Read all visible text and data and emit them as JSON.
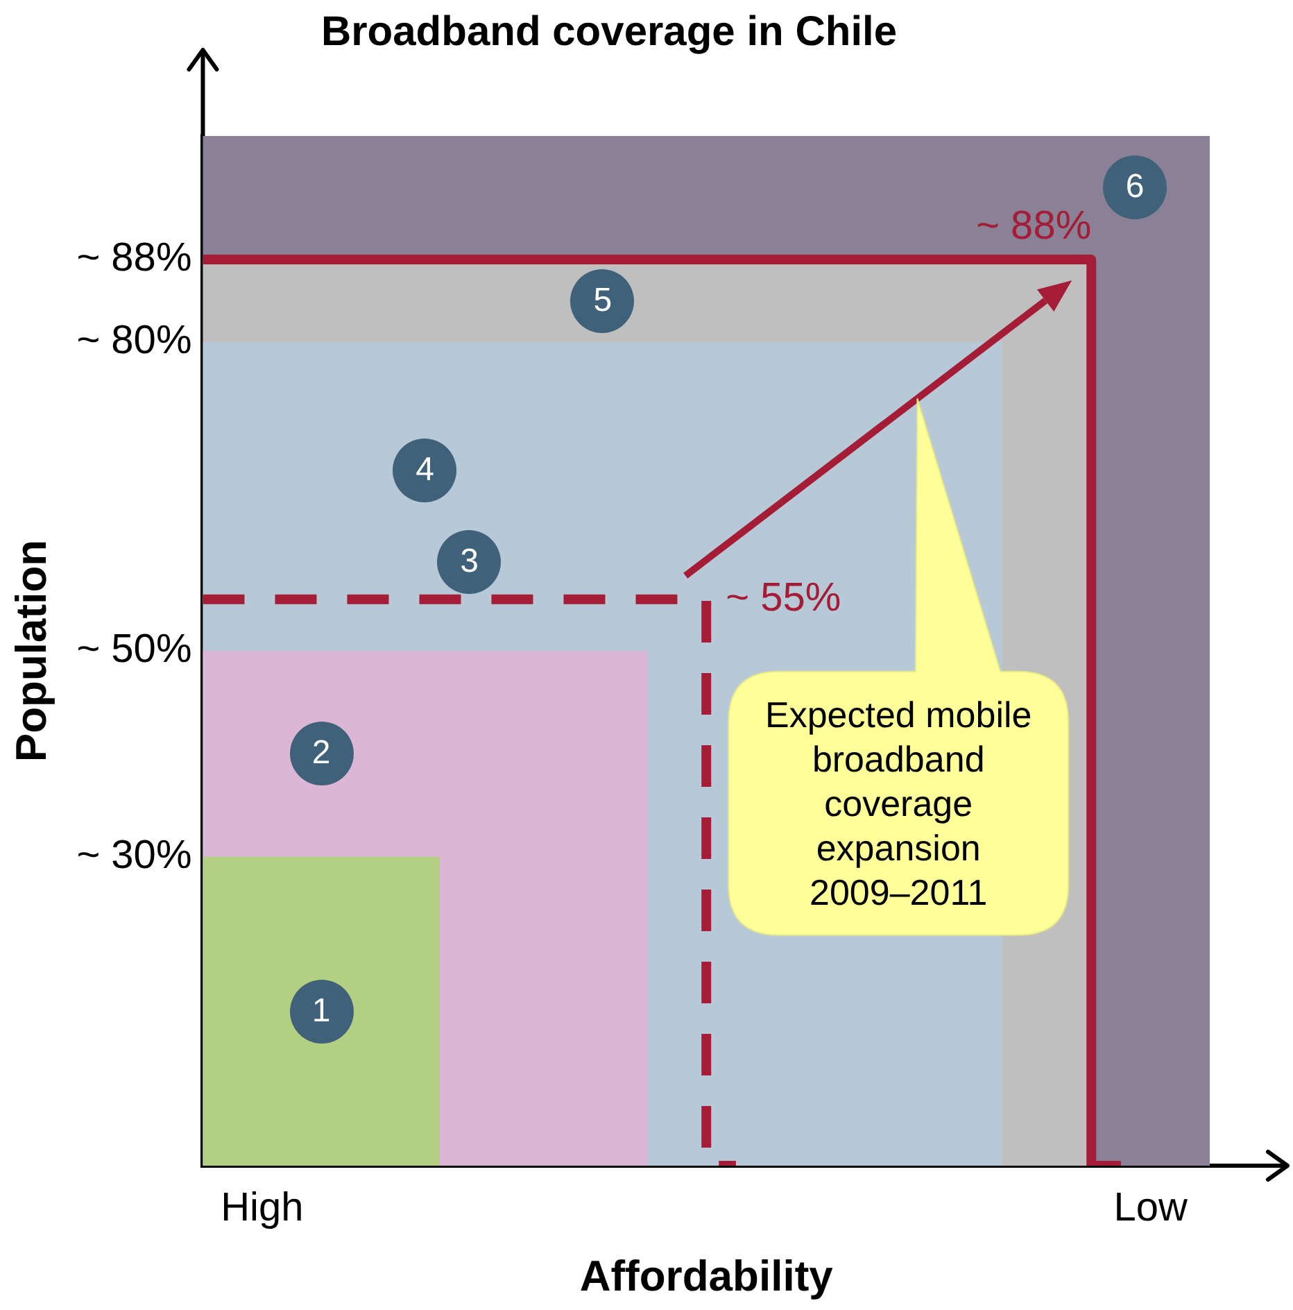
{
  "chart_data": {
    "type": "area",
    "title": "Broadband coverage in Chile",
    "xlabel": "Affordability",
    "ylabel": "Population",
    "categories": [
      null,
      null,
      "High",
      null,
      null,
      null,
      null,
      null,
      null,
      null,
      null,
      null,
      null,
      null,
      null,
      null,
      null,
      null,
      null,
      null,
      null,
      null,
      null,
      null,
      null,
      null,
      null,
      null,
      null,
      null,
      null,
      null,
      "Low",
      null,
      null
    ],
    "ylim": [
      0,
      100
    ],
    "yticks": [
      {
        "value": 30,
        "label": "~ 30%"
      },
      {
        "value": 50,
        "label": "~ 50%"
      },
      {
        "value": 80,
        "label": "~ 80%"
      },
      {
        "value": 88,
        "label": "~ 88%"
      }
    ],
    "bands": [
      {
        "axis": "y",
        "from": 0,
        "to": 100,
        "label": "6",
        "color": "#8b8197"
      }
    ],
    "series": [
      {
        "name": "5",
        "color": "#bfbfbf",
        "values": [
          88,
          88,
          88,
          88,
          88,
          88,
          88,
          88,
          88,
          88,
          88,
          88,
          88,
          88,
          88,
          88,
          88,
          88,
          88,
          88,
          88,
          88,
          88,
          88,
          88,
          88,
          88,
          88,
          88,
          88,
          88,
          null,
          null,
          null,
          null
        ]
      },
      {
        "name": "4",
        "color": "#b7c9d6",
        "values": [
          80,
          80,
          80,
          80,
          80,
          80,
          80,
          80,
          80,
          80,
          80,
          80,
          80,
          80,
          80,
          80,
          80,
          80,
          80,
          80,
          80,
          80,
          80,
          80,
          80,
          80,
          80,
          80,
          null,
          null,
          null,
          null,
          null,
          null,
          null
        ]
      },
      {
        "name": "2",
        "color": "#dcb7d5",
        "values": [
          50,
          50,
          50,
          50,
          50,
          50,
          50,
          50,
          50,
          50,
          50,
          50,
          50,
          50,
          50,
          50,
          null,
          null,
          null,
          null,
          null,
          null,
          null,
          null,
          null,
          null,
          null,
          null,
          null,
          null,
          null,
          null,
          null,
          null,
          null
        ]
      },
      {
        "name": "1",
        "color": "#b3cf82",
        "values": [
          30,
          30,
          30,
          30,
          30,
          30,
          30,
          30,
          30,
          null,
          null,
          null,
          null,
          null,
          null,
          null,
          null,
          null,
          null,
          null,
          null,
          null,
          null,
          null,
          null,
          null,
          null,
          null,
          null,
          null,
          null,
          null,
          null,
          null,
          null
        ]
      },
      {
        "name": "3",
        "type": "step",
        "line_style": "dashed",
        "color": "#a51c36",
        "values": [
          55,
          55,
          55,
          55,
          55,
          55,
          55,
          55,
          55,
          55,
          55,
          55,
          55,
          55,
          55,
          55,
          55,
          55,
          0,
          null,
          null,
          null,
          null,
          null,
          null,
          null,
          null,
          null,
          null,
          null,
          null,
          null,
          null,
          null,
          null
        ],
        "value_labels": [
          null,
          null,
          null,
          null,
          null,
          null,
          null,
          null,
          null,
          null,
          null,
          null,
          null,
          null,
          null,
          null,
          null,
          "~ 55%",
          null,
          null,
          null,
          null,
          null,
          null,
          null,
          null,
          null,
          null,
          null,
          null,
          null,
          null,
          null,
          null,
          null
        ]
      },
      {
        "type": "step",
        "line_style": "solid",
        "color": "#a51c36",
        "values": [
          88,
          88,
          88,
          88,
          88,
          88,
          88,
          88,
          88,
          88,
          88,
          88,
          88,
          88,
          88,
          88,
          88,
          88,
          88,
          88,
          88,
          88,
          88,
          88,
          88,
          88,
          88,
          88,
          88,
          88,
          88,
          0,
          null,
          null,
          null
        ],
        "value_labels": [
          null,
          null,
          null,
          null,
          null,
          null,
          null,
          null,
          null,
          null,
          null,
          null,
          null,
          null,
          null,
          null,
          null,
          null,
          null,
          null,
          null,
          null,
          null,
          null,
          null,
          null,
          null,
          null,
          null,
          null,
          "~ 88%",
          null,
          null,
          null,
          null
        ]
      }
    ],
    "annotations": [
      "Expected mobile broadband coverage expansion 2009–2011"
    ]
  }
}
